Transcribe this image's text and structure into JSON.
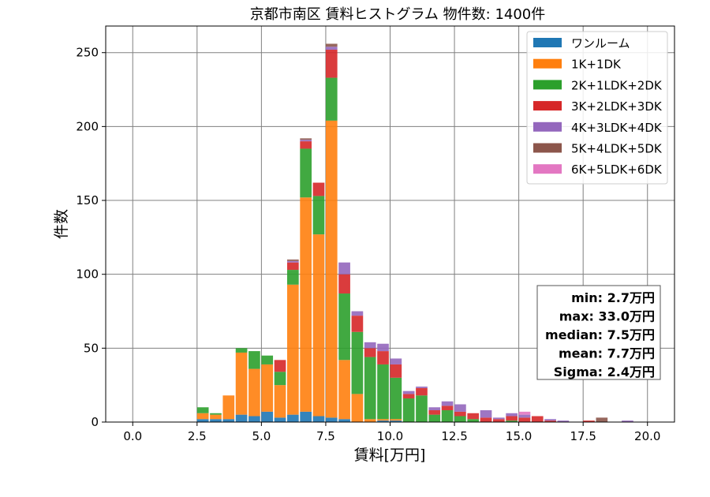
{
  "chart_data": {
    "type": "bar",
    "stacked": true,
    "title": "京都市南区 賃料ヒストグラム  物件数: 1400件",
    "xlabel": "賃料[万円]",
    "ylabel": "件数",
    "xlim": [
      -1.05,
      21.05
    ],
    "ylim": [
      0,
      268
    ],
    "xticks": [
      0.0,
      2.5,
      5.0,
      7.5,
      10.0,
      12.5,
      15.0,
      17.5,
      20.0
    ],
    "xtick_labels": [
      "0.0",
      "2.5",
      "5.0",
      "7.5",
      "10.0",
      "12.5",
      "15.0",
      "17.5",
      "20.0"
    ],
    "yticks": [
      0,
      50,
      100,
      150,
      200,
      250
    ],
    "ytick_labels": [
      "0",
      "50",
      "100",
      "150",
      "200",
      "250"
    ],
    "grid": true,
    "legend_position": "top-right",
    "bin_width": 0.5,
    "x": [
      2.5,
      3.0,
      3.5,
      4.0,
      4.5,
      5.0,
      5.5,
      6.0,
      6.5,
      7.0,
      7.5,
      8.0,
      8.5,
      9.0,
      9.5,
      10.0,
      10.5,
      11.0,
      11.5,
      12.0,
      12.5,
      13.0,
      13.5,
      14.0,
      14.5,
      15.0,
      15.5,
      16.0,
      16.5,
      17.0,
      17.5,
      18.0,
      18.5,
      19.0,
      19.5
    ],
    "series": [
      {
        "name": "ワンルーム",
        "color": "#1f77b4",
        "values": [
          2,
          2,
          2,
          5,
          4,
          7,
          3,
          5,
          7,
          4,
          3,
          2,
          0,
          0,
          1,
          1,
          0,
          0,
          0,
          0,
          0,
          0,
          0,
          0,
          0,
          0,
          0,
          0,
          0,
          0,
          0,
          0,
          0,
          0,
          0
        ]
      },
      {
        "name": "1K+1DK",
        "color": "#ff7f0e",
        "values": [
          4,
          3,
          16,
          42,
          32,
          32,
          22,
          88,
          145,
          123,
          201,
          40,
          19,
          2,
          1,
          1,
          0,
          0,
          0,
          0,
          0,
          0,
          0,
          0,
          0,
          0,
          0,
          0,
          0,
          0,
          0,
          0,
          0,
          0,
          0
        ]
      },
      {
        "name": "2K+1LDK+2DK",
        "color": "#2ca02c",
        "values": [
          4,
          1,
          0,
          3,
          12,
          6,
          9,
          10,
          33,
          26,
          29,
          45,
          42,
          42,
          37,
          28,
          16,
          18,
          5,
          8,
          4,
          2,
          0,
          0,
          1,
          0,
          0,
          0,
          0,
          0,
          0,
          0,
          0,
          0,
          0
        ]
      },
      {
        "name": "3K+2LDK+3DK",
        "color": "#d62728",
        "values": [
          0,
          0,
          0,
          0,
          0,
          0,
          8,
          5,
          5,
          9,
          19,
          13,
          11,
          6,
          9,
          9,
          3,
          5,
          3,
          3,
          3,
          4,
          3,
          2,
          3,
          3,
          4,
          1,
          0,
          0,
          1,
          0,
          0,
          0,
          0
        ]
      },
      {
        "name": "4K+3LDK+4DK",
        "color": "#9467bd",
        "values": [
          0,
          0,
          0,
          0,
          0,
          0,
          0,
          1,
          1,
          0,
          2,
          8,
          3,
          4,
          5,
          4,
          2,
          1,
          2,
          3,
          5,
          0,
          5,
          1,
          2,
          2,
          0,
          1,
          1,
          0,
          0,
          0,
          0,
          1,
          0
        ]
      },
      {
        "name": "5K+4LDK+5DK",
        "color": "#8c564b",
        "values": [
          0,
          0,
          0,
          0,
          0,
          0,
          0,
          1,
          1,
          0,
          2,
          0,
          0,
          0,
          0,
          0,
          0,
          0,
          0,
          0,
          0,
          0,
          0,
          0,
          0,
          0,
          0,
          0,
          0,
          0,
          0,
          3,
          0,
          0,
          0
        ]
      },
      {
        "name": "6K+5LDK+6DK",
        "color": "#e377c2",
        "values": [
          0,
          0,
          0,
          0,
          0,
          0,
          0,
          0,
          0,
          0,
          0,
          0,
          0,
          0,
          0,
          0,
          0,
          0,
          0,
          0,
          0,
          0,
          0,
          0,
          0,
          2,
          0,
          0,
          0,
          0,
          0,
          0,
          0,
          0,
          0
        ]
      }
    ],
    "stats": [
      "min: 2.7万円",
      "max: 33.0万円",
      "median: 7.5万円",
      "mean: 7.7万円",
      "Sigma: 2.4万円"
    ]
  }
}
